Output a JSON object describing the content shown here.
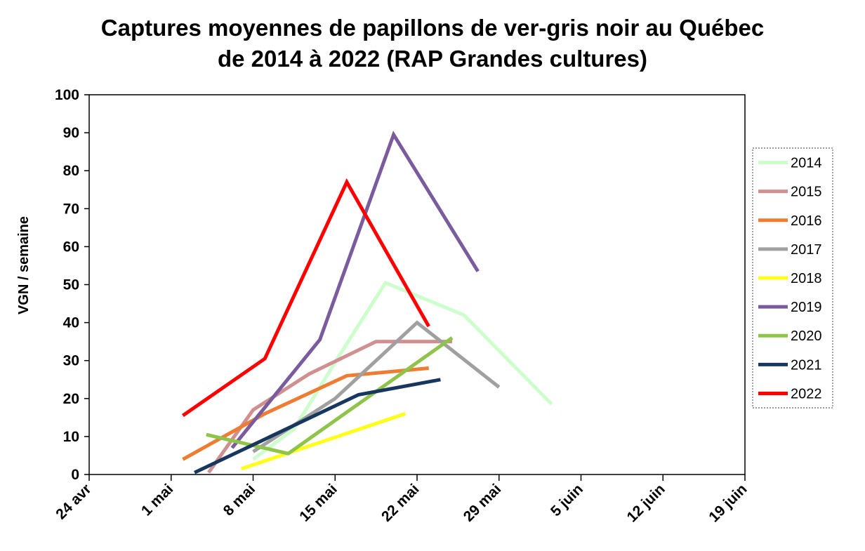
{
  "chart_data": {
    "type": "line",
    "title_line1": "Captures moyennes de papillons de ver-gris noir au Québec",
    "title_line2": "de 2014 à 2022 (RAP Grandes cultures)",
    "xlabel": "",
    "ylabel": "VGN / semaine",
    "ylim": [
      0,
      100
    ],
    "yticks": [
      "0",
      "10",
      "20",
      "30",
      "40",
      "50",
      "60",
      "70",
      "80",
      "90",
      "100"
    ],
    "xticks": [
      "24 avr",
      "1 mai",
      "8 mai",
      "15 mai",
      "22 mai",
      "29 mai",
      "5 juin",
      "12 juin",
      "19 juin"
    ],
    "xaxis_note": "x values are day offsets from 24 avr (ticks every 7 days)",
    "grid": "horizontal dash-dot",
    "legend_position": "right",
    "series": [
      {
        "name": "2014",
        "color": "#ccffcc",
        "points": [
          [
            14,
            4
          ],
          [
            17.5,
            12
          ],
          [
            21.5,
            32
          ],
          [
            25.3,
            50.5
          ],
          [
            32,
            42
          ],
          [
            39.5,
            18.5
          ]
        ]
      },
      {
        "name": "2015",
        "color": "#d09090",
        "points": [
          [
            10.2,
            0.5
          ],
          [
            14,
            17
          ],
          [
            18.8,
            26.5
          ],
          [
            24.5,
            35
          ],
          [
            31,
            35
          ]
        ]
      },
      {
        "name": "2016",
        "color": "#ee7d33",
        "points": [
          [
            8,
            4
          ],
          [
            15,
            16
          ],
          [
            22,
            26
          ],
          [
            29,
            28
          ]
        ]
      },
      {
        "name": "2017",
        "color": "#a0a0a0",
        "points": [
          [
            14,
            6
          ],
          [
            21,
            20
          ],
          [
            28,
            40
          ],
          [
            35,
            23
          ]
        ]
      },
      {
        "name": "2018",
        "color": "#ffff1a",
        "points": [
          [
            13,
            1.5
          ],
          [
            27,
            16
          ]
        ]
      },
      {
        "name": "2019",
        "color": "#7a5c9e",
        "points": [
          [
            12.2,
            7
          ],
          [
            19.7,
            35.5
          ],
          [
            26,
            89.5
          ],
          [
            33.2,
            53.5
          ]
        ]
      },
      {
        "name": "2020",
        "color": "#8dc449",
        "points": [
          [
            10,
            10.5
          ],
          [
            17,
            5.5
          ],
          [
            31,
            36
          ]
        ]
      },
      {
        "name": "2021",
        "color": "#17375e",
        "points": [
          [
            9,
            0.5
          ],
          [
            23,
            21
          ],
          [
            30,
            25
          ]
        ]
      },
      {
        "name": "2022",
        "color": "#ff0000",
        "points": [
          [
            8,
            15.5
          ],
          [
            15,
            30.5
          ],
          [
            22,
            77
          ],
          [
            29,
            39
          ]
        ]
      }
    ]
  }
}
